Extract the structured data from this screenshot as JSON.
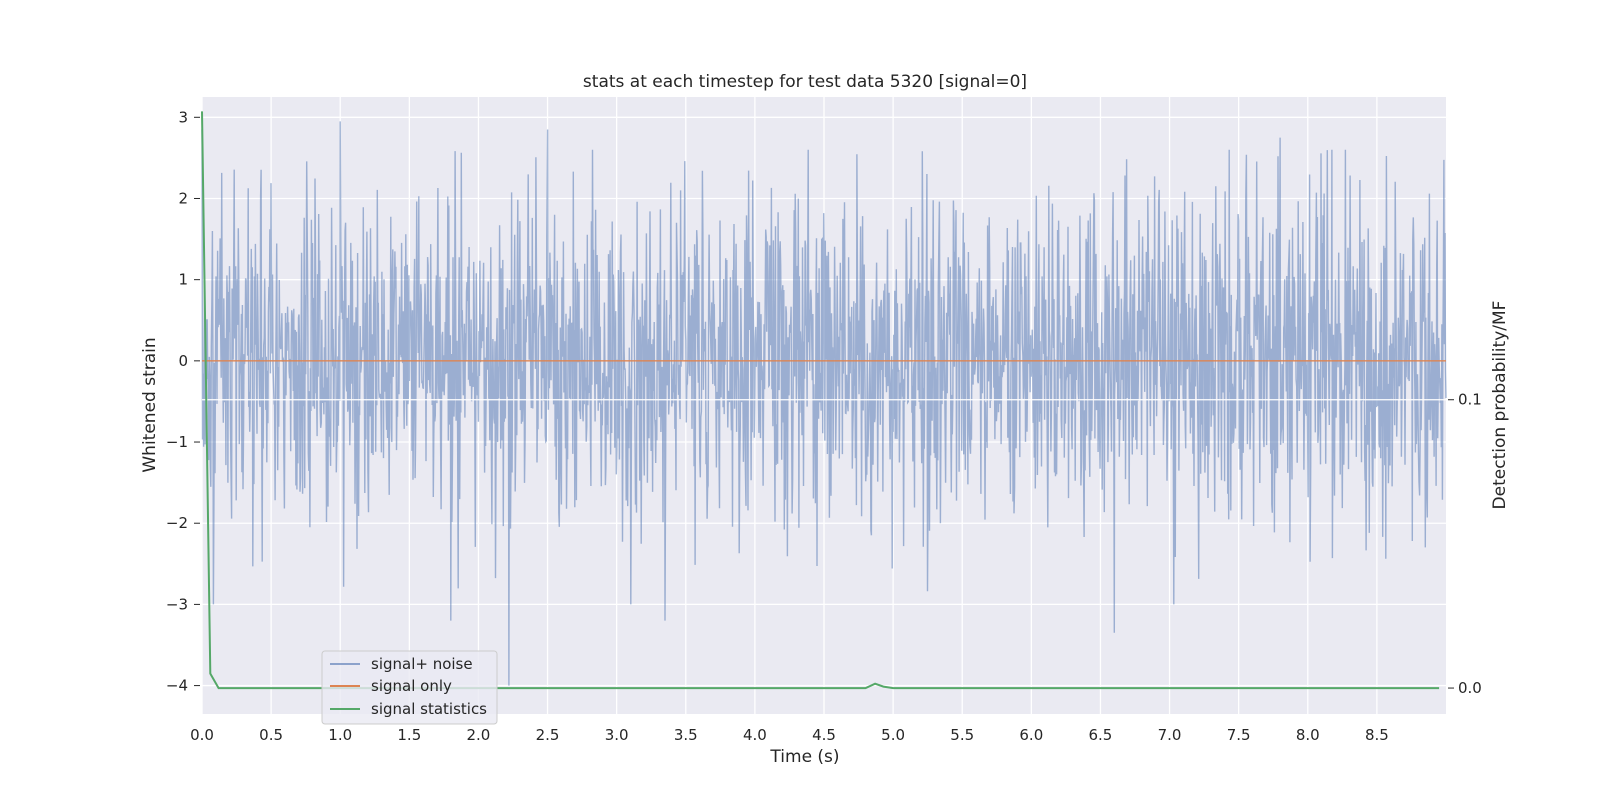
{
  "chart_data": {
    "type": "line",
    "title": "stats at each timestep for test data 5320 [signal=0]",
    "xlabel": "Time (s)",
    "ylabel": "Whitened strain",
    "y2label": "Detection probability/MF",
    "xlim": [
      0.0,
      9.0
    ],
    "ylim": [
      -4.35,
      3.25
    ],
    "y2lim": [
      -0.009,
      0.205
    ],
    "x_ticks": [
      0.0,
      0.5,
      1.0,
      1.5,
      2.0,
      2.5,
      3.0,
      3.5,
      4.0,
      4.5,
      5.0,
      5.5,
      6.0,
      6.5,
      7.0,
      7.5,
      8.0,
      8.5
    ],
    "x_tick_labels": [
      "0.0",
      "0.5",
      "1.0",
      "1.5",
      "2.0",
      "2.5",
      "3.0",
      "3.5",
      "4.0",
      "4.5",
      "5.0",
      "5.5",
      "6.0",
      "6.5",
      "7.0",
      "7.5",
      "8.0",
      "8.5"
    ],
    "y_ticks": [
      3,
      2,
      1,
      0,
      -1,
      -2,
      -3,
      -4
    ],
    "y_tick_labels": [
      "3",
      "2",
      "1",
      "0",
      "−1",
      "−2",
      "−3",
      "−4"
    ],
    "y2_ticks": [
      0.1,
      0.0
    ],
    "y2_tick_labels": [
      "0.1",
      "0.0"
    ],
    "grid": true,
    "legend_position": "lower-left",
    "colors": {
      "background": "#eaeaf2",
      "grid": "#ffffff",
      "noise": "#4c72b0",
      "signal_only": "#dd8452",
      "statistics": "#55a868"
    },
    "series": [
      {
        "name": "signal+ noise",
        "axis": "left",
        "noise_sd": 0.95,
        "highlighted_extremes": [
          {
            "x": 0.0,
            "y": 2.85
          },
          {
            "x": 1.0,
            "y": 2.95
          },
          {
            "x": 2.5,
            "y": 2.85
          },
          {
            "x": 7.8,
            "y": 2.75
          },
          {
            "x": 1.8,
            "y": -3.2
          },
          {
            "x": 2.22,
            "y": -4.0
          },
          {
            "x": 3.35,
            "y": -3.2
          },
          {
            "x": 6.6,
            "y": -3.35
          }
        ]
      },
      {
        "name": "signal only",
        "axis": "left",
        "x": [
          0.0,
          9.0
        ],
        "y": [
          0.0,
          0.0
        ]
      },
      {
        "name": "signal statistics",
        "axis": "right",
        "x": [
          0.0,
          0.06,
          0.12,
          0.25,
          1.0,
          2.0,
          3.0,
          4.0,
          4.8,
          4.87,
          4.93,
          5.0,
          6.0,
          7.0,
          8.0,
          8.95
        ],
        "y": [
          0.2,
          0.005,
          0.0,
          0.0,
          0.0,
          0.0,
          0.0,
          0.0,
          0.0,
          0.0015,
          0.0005,
          0.0,
          0.0,
          0.0,
          0.0,
          0.0
        ]
      }
    ]
  }
}
